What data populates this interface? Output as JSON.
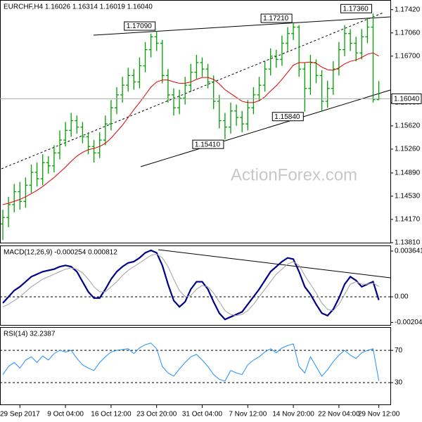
{
  "chart_data": [
    {
      "type": "ohlc",
      "title": "EURCHF,H4  1.16026 1.16314 1.16019 1.16040",
      "watermark": "ActionForex.com",
      "color": "#00a000",
      "categories": [
        null,
        null,
        null,
        "29 Sep 2017",
        null,
        null,
        null,
        null,
        null,
        null,
        null,
        "9 Oct 04:00",
        null,
        null,
        null,
        null,
        null,
        null,
        null,
        "16 Oct 12:00",
        null,
        null,
        null,
        null,
        null,
        null,
        null,
        "23 Oct 20:00",
        null,
        null,
        null,
        null,
        null,
        null,
        null,
        "31 Oct 04:00",
        null,
        null,
        null,
        null,
        null,
        null,
        null,
        "7 Nov 12:00",
        null,
        null,
        null,
        null,
        null,
        null,
        null,
        "14 Nov 20:00",
        null,
        null,
        null,
        null,
        null,
        null,
        null,
        "22 Nov 04:00",
        null,
        null,
        null,
        null,
        null,
        null,
        "29 Nov 12:00"
      ],
      "open": [
        1.141,
        1.142,
        1.144,
        1.146,
        1.1445,
        1.147,
        1.149,
        1.148,
        1.1505,
        1.15,
        1.152,
        1.154,
        1.1555,
        1.157,
        1.156,
        1.1545,
        1.153,
        1.152,
        1.154,
        1.1565,
        1.159,
        1.161,
        1.1625,
        1.164,
        1.163,
        1.1655,
        1.168,
        1.17,
        1.169,
        1.164,
        1.161,
        1.159,
        1.1605,
        1.1625,
        1.1645,
        1.166,
        1.165,
        1.163,
        1.16,
        1.157,
        1.156,
        1.1585,
        1.1575,
        1.1565,
        1.159,
        1.161,
        1.1625,
        1.165,
        1.167,
        1.1665,
        1.169,
        1.1705,
        1.1715,
        1.165,
        1.162,
        1.166,
        1.164,
        1.16,
        1.162,
        1.165,
        1.168,
        1.1705,
        1.169,
        1.1675,
        1.17,
        1.1715,
        1.16026
      ],
      "high": [
        1.1432,
        1.1452,
        1.1472,
        1.1475,
        1.1482,
        1.1502,
        1.1505,
        1.1518,
        1.1515,
        1.1532,
        1.1555,
        1.1568,
        1.1582,
        1.1578,
        1.1568,
        1.1552,
        1.154,
        1.1552,
        1.1578,
        1.1602,
        1.1622,
        1.1638,
        1.1652,
        1.165,
        1.1668,
        1.1692,
        1.1705,
        1.1709,
        1.1695,
        1.165,
        1.162,
        1.1618,
        1.1638,
        1.1658,
        1.1672,
        1.1668,
        1.1658,
        1.164,
        1.161,
        1.1582,
        1.1598,
        1.1595,
        1.1585,
        1.1602,
        1.1622,
        1.1638,
        1.1662,
        1.1682,
        1.168,
        1.1702,
        1.1715,
        1.1721,
        1.1718,
        1.166,
        1.1672,
        1.1665,
        1.1648,
        1.1632,
        1.1662,
        1.1692,
        1.1718,
        1.1712,
        1.17,
        1.1712,
        1.1728,
        1.1736,
        1.16314
      ],
      "low": [
        1.1385,
        1.1405,
        1.1428,
        1.1432,
        1.1435,
        1.1458,
        1.1468,
        1.147,
        1.1488,
        1.149,
        1.151,
        1.153,
        1.1545,
        1.155,
        1.1535,
        1.1518,
        1.1505,
        1.1512,
        1.1532,
        1.1555,
        1.158,
        1.1598,
        1.1615,
        1.1618,
        1.162,
        1.1645,
        1.1668,
        1.1678,
        1.1628,
        1.1598,
        1.1578,
        1.158,
        1.1595,
        1.1615,
        1.1635,
        1.1638,
        1.162,
        1.1588,
        1.1558,
        1.1541,
        1.155,
        1.1562,
        1.1552,
        1.1555,
        1.158,
        1.16,
        1.1615,
        1.164,
        1.1652,
        1.1655,
        1.1678,
        1.1695,
        1.1638,
        1.1584,
        1.161,
        1.1628,
        1.1584,
        1.159,
        1.161,
        1.164,
        1.167,
        1.1678,
        1.1662,
        1.1665,
        1.169,
        1.1598,
        1.16019
      ],
      "close": [
        1.142,
        1.144,
        1.146,
        1.1445,
        1.147,
        1.149,
        1.148,
        1.1505,
        1.15,
        1.152,
        1.154,
        1.1555,
        1.157,
        1.156,
        1.1545,
        1.153,
        1.152,
        1.154,
        1.1565,
        1.159,
        1.161,
        1.1625,
        1.164,
        1.163,
        1.1655,
        1.168,
        1.17,
        1.169,
        1.164,
        1.161,
        1.159,
        1.1605,
        1.1625,
        1.1645,
        1.166,
        1.165,
        1.163,
        1.16,
        1.157,
        1.156,
        1.1585,
        1.1575,
        1.1565,
        1.159,
        1.161,
        1.1625,
        1.165,
        1.167,
        1.1665,
        1.169,
        1.1705,
        1.1715,
        1.165,
        1.162,
        1.166,
        1.164,
        1.16,
        1.162,
        1.165,
        1.168,
        1.1705,
        1.169,
        1.1675,
        1.17,
        1.1715,
        1.16026,
        1.1604
      ],
      "ma": {
        "color": "#e00000",
        "values": [
          1.144,
          1.1442,
          1.1445,
          1.1448,
          1.1452,
          1.1457,
          1.1462,
          1.1468,
          1.1475,
          1.1482,
          1.149,
          1.1498,
          1.1507,
          1.1515,
          1.1521,
          1.1525,
          1.1527,
          1.153,
          1.1535,
          1.1543,
          1.1553,
          1.1563,
          1.1575,
          1.1587,
          1.1598,
          1.161,
          1.1622,
          1.163,
          1.1633,
          1.1633,
          1.163,
          1.1628,
          1.1628,
          1.163,
          1.1634,
          1.1637,
          1.1637,
          1.1634,
          1.1627,
          1.1618,
          1.1612,
          1.1606,
          1.16,
          1.1598,
          1.1598,
          1.1601,
          1.1607,
          1.1616,
          1.1624,
          1.1634,
          1.1645,
          1.1656,
          1.166,
          1.166,
          1.1661,
          1.1659,
          1.1653,
          1.1649,
          1.1648,
          1.1652,
          1.1658,
          1.1662,
          1.1664,
          1.1668,
          1.1673,
          1.1675,
          1.167
        ]
      },
      "annotations": [
        {
          "value": 1.1709,
          "label": "1.17090"
        },
        {
          "value": 1.1721,
          "label": "1.17210"
        },
        {
          "value": 1.1736,
          "label": "1.17360"
        },
        {
          "value": 1.1541,
          "label": "1.15410"
        },
        {
          "value": 1.1584,
          "label": "1.15840"
        }
      ],
      "last_price": {
        "value": 1.1604,
        "label": "1.16040"
      },
      "ylim": [
        1.1381,
        1.1757
      ],
      "yticks": [
        {
          "value": 1.1742,
          "label": "1.17420"
        },
        {
          "value": 1.1706,
          "label": "1.17060"
        },
        {
          "value": 1.167,
          "label": "1.16700"
        },
        {
          "value": 1.1598,
          "label": "1.15980"
        },
        {
          "value": 1.1562,
          "label": "1.15620"
        },
        {
          "value": 1.1526,
          "label": "1.15260"
        },
        {
          "value": 1.1489,
          "label": "1.14890"
        },
        {
          "value": 1.1453,
          "label": "1.14530"
        },
        {
          "value": 1.1417,
          "label": "1.14170"
        },
        {
          "value": 1.1381,
          "label": "1.13810"
        }
      ]
    },
    {
      "type": "line",
      "title": "MACD(12,26,9) -0.000254 0.000812",
      "zero_line": true,
      "series": [
        {
          "color": "#00008b",
          "width": 2.2,
          "values": [
            -0.0005,
            0.0,
            0.0005,
            0.0008,
            0.0012,
            0.0016,
            0.0018,
            0.002,
            0.0021,
            0.0022,
            0.0024,
            0.0025,
            0.0024,
            0.002,
            0.0012,
            0.0004,
            -0.0001,
            -0.0001,
            0.0006,
            0.0014,
            0.002,
            0.0024,
            0.0027,
            0.0028,
            0.0031,
            0.0035,
            0.0037,
            0.0035,
            0.0025,
            0.001,
            -0.0003,
            -0.0008,
            -0.0004,
            0.0006,
            0.0012,
            0.0012,
            0.0006,
            -0.0004,
            -0.0013,
            -0.0018,
            -0.0016,
            -0.0014,
            -0.0012,
            -0.0006,
            0.0,
            0.0006,
            0.0013,
            0.002,
            0.0024,
            0.0028,
            0.0031,
            0.003,
            0.002,
            0.0008,
            0.0002,
            -0.0006,
            -0.0013,
            -0.0015,
            -0.001,
            -0.0001,
            0.001,
            0.0016,
            0.0013,
            0.0008,
            0.001,
            0.0012,
            -0.000254
          ]
        },
        {
          "color": "#a0a0a0",
          "width": 1,
          "values": [
            -0.0008,
            -0.0006,
            -0.0003,
            0.0,
            0.0004,
            0.0008,
            0.0011,
            0.0014,
            0.0016,
            0.0018,
            0.002,
            0.0022,
            0.0023,
            0.0022,
            0.0019,
            0.0014,
            0.0008,
            0.0004,
            0.0004,
            0.0008,
            0.0012,
            0.0017,
            0.0021,
            0.0024,
            0.0027,
            0.003,
            0.0033,
            0.0034,
            0.0031,
            0.0024,
            0.0014,
            0.0005,
            0.0,
            0.0001,
            0.0006,
            0.0009,
            0.0008,
            0.0003,
            -0.0004,
            -0.0011,
            -0.0014,
            -0.0015,
            -0.0014,
            -0.0011,
            -0.0006,
            0.0,
            0.0006,
            0.0012,
            0.0018,
            0.0022,
            0.0026,
            0.0028,
            0.0025,
            0.0017,
            0.001,
            0.0003,
            -0.0005,
            -0.001,
            -0.0011,
            -0.0006,
            0.0002,
            0.001,
            0.0012,
            0.001,
            0.001,
            0.0011,
            0.000812
          ]
        }
      ],
      "ylim": [
        -0.00224,
        0.00403
      ],
      "yticks": [
        0.003641,
        {
          "value": 0,
          "label": "0.00"
        },
        -0.00204
      ]
    },
    {
      "type": "line",
      "title": "RSI(14) 32.2387",
      "grid": true,
      "series": [
        {
          "color": "#1e90ff",
          "width": 1,
          "values": [
            40,
            50,
            55,
            48,
            58,
            62,
            55,
            63,
            58,
            66,
            70,
            68,
            70,
            60,
            52,
            48,
            45,
            55,
            62,
            68,
            70,
            71,
            72,
            66,
            73,
            77,
            79,
            72,
            50,
            42,
            38,
            47,
            55,
            62,
            65,
            58,
            50,
            40,
            34,
            32,
            45,
            42,
            40,
            52,
            58,
            62,
            68,
            72,
            67,
            73,
            76,
            78,
            50,
            42,
            62,
            50,
            38,
            46,
            56,
            64,
            70,
            64,
            60,
            67,
            70,
            72,
            32.2387
          ]
        }
      ],
      "ylim": [
        3,
        98
      ],
      "yticks": [
        70,
        30
      ]
    }
  ]
}
